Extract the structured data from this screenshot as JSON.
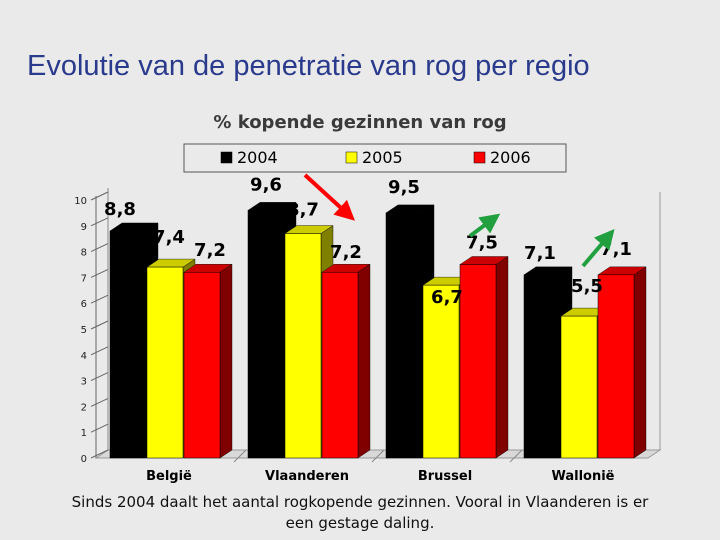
{
  "slide": {
    "title": "Evolutie van de penetratie van rog per regio",
    "footer_line1": "Sinds 2004 daalt het aantal rogkopende gezinnen. Vooral in Vlaanderen is er",
    "footer_line2": "een gestage daling."
  },
  "chart_data": {
    "type": "bar",
    "title": "% kopende gezinnen van rog",
    "categories": [
      "België",
      "Vlaanderen",
      "Brussel",
      "Wallonië"
    ],
    "series": [
      {
        "name": "2004",
        "color": "#000000",
        "values": [
          8.8,
          9.6,
          9.5,
          7.1
        ]
      },
      {
        "name": "2005",
        "color": "#ffff00",
        "values": [
          7.4,
          8.7,
          6.7,
          5.5
        ]
      },
      {
        "name": "2006",
        "color": "#ff0000",
        "values": [
          7.2,
          7.2,
          7.5,
          7.1
        ]
      }
    ],
    "data_labels": [
      [
        "8,8",
        "7,4",
        "7,2"
      ],
      [
        "9,6",
        "8,7",
        "7,2"
      ],
      [
        "9,5",
        "6,7",
        "7,5"
      ],
      [
        "7,1",
        "5,5",
        "7,1"
      ]
    ],
    "yticks": [
      "0",
      "1",
      "2",
      "3",
      "4",
      "5",
      "6",
      "7",
      "8",
      "9",
      "10"
    ],
    "ylim": [
      0,
      10
    ],
    "legend_position": "top",
    "grid": false,
    "bar_style": "3d",
    "arrows": [
      {
        "category": "Vlaanderen",
        "direction": "down",
        "color": "#ff0000"
      },
      {
        "category": "Brussel",
        "direction": "up",
        "color": "#22a040"
      },
      {
        "category": "Wallonië",
        "direction": "up",
        "color": "#22a040"
      }
    ]
  }
}
